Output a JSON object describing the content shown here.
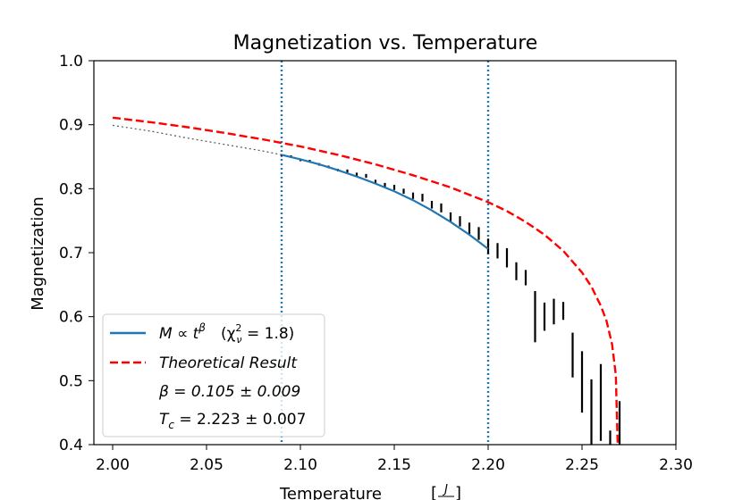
{
  "chart_data": {
    "type": "line",
    "title": "Magnetization vs. Temperature",
    "xlabel": "Temperature",
    "xlabel_unit_num": "J",
    "xlabel_unit_den": "",
    "ylabel": "Magnetization",
    "xlim": [
      1.99,
      2.3
    ],
    "ylim": [
      0.4,
      1.0
    ],
    "x_ticks": [
      2.0,
      2.05,
      2.1,
      2.15,
      2.2,
      2.25,
      2.3
    ],
    "x_tick_labels": [
      "2.00",
      "2.05",
      "2.10",
      "2.15",
      "2.20",
      "2.25",
      "2.30"
    ],
    "y_ticks": [
      0.4,
      0.5,
      0.6,
      0.7,
      0.8,
      0.9,
      1.0
    ],
    "y_tick_labels": [
      "0.4",
      "0.5",
      "0.6",
      "0.7",
      "0.8",
      "0.9",
      "1.0"
    ],
    "grid": false,
    "legend_position": "lower-left",
    "vlines": [
      {
        "x": 2.09,
        "color": "#1f77b4",
        "style": "dotted"
      },
      {
        "x": 2.2,
        "color": "#1f77b4",
        "style": "dotted"
      }
    ],
    "series": [
      {
        "name": "Theoretical Result",
        "style": "dashed",
        "color": "#ff0000",
        "x": [
          2.0,
          2.02,
          2.04,
          2.06,
          2.08,
          2.1,
          2.12,
          2.14,
          2.16,
          2.18,
          2.2,
          2.21,
          2.22,
          2.23,
          2.24,
          2.25,
          2.255,
          2.26,
          2.263,
          2.266,
          2.268,
          2.269
        ],
        "y": [
          0.911,
          0.904,
          0.896,
          0.887,
          0.877,
          0.866,
          0.853,
          0.838,
          0.821,
          0.802,
          0.779,
          0.765,
          0.748,
          0.728,
          0.703,
          0.669,
          0.647,
          0.617,
          0.594,
          0.557,
          0.509,
          0.4
        ]
      },
      {
        "name": "M ∝ t^β  (χ²ν = 1.8)",
        "style": "solid",
        "color": "#1f77b4",
        "x": [
          2.09,
          2.1,
          2.11,
          2.12,
          2.13,
          2.14,
          2.15,
          2.16,
          2.17,
          2.18,
          2.19,
          2.2
        ],
        "y": [
          0.853,
          0.846,
          0.838,
          0.829,
          0.819,
          0.808,
          0.796,
          0.782,
          0.766,
          0.748,
          0.728,
          0.706
        ]
      },
      {
        "name": "",
        "style": "dotted",
        "color": "#555555",
        "x": [
          2.0,
          2.02,
          2.04,
          2.06,
          2.08,
          2.09
        ],
        "y": [
          0.899,
          0.89,
          0.879,
          0.869,
          0.859,
          0.853
        ]
      }
    ],
    "data_points": [
      {
        "x": 2.09,
        "y": 0.852,
        "yerr": 0.002
      },
      {
        "x": 2.095,
        "y": 0.85,
        "yerr": 0.002
      },
      {
        "x": 2.1,
        "y": 0.845,
        "yerr": 0.002
      },
      {
        "x": 2.105,
        "y": 0.843,
        "yerr": 0.002
      },
      {
        "x": 2.11,
        "y": 0.838,
        "yerr": 0.002
      },
      {
        "x": 2.115,
        "y": 0.834,
        "yerr": 0.002
      },
      {
        "x": 2.12,
        "y": 0.829,
        "yerr": 0.002
      },
      {
        "x": 2.125,
        "y": 0.827,
        "yerr": 0.003
      },
      {
        "x": 2.13,
        "y": 0.822,
        "yerr": 0.003
      },
      {
        "x": 2.135,
        "y": 0.82,
        "yerr": 0.003
      },
      {
        "x": 2.14,
        "y": 0.811,
        "yerr": 0.003
      },
      {
        "x": 2.145,
        "y": 0.805,
        "yerr": 0.004
      },
      {
        "x": 2.15,
        "y": 0.802,
        "yerr": 0.004
      },
      {
        "x": 2.155,
        "y": 0.796,
        "yerr": 0.004
      },
      {
        "x": 2.16,
        "y": 0.789,
        "yerr": 0.005
      },
      {
        "x": 2.165,
        "y": 0.786,
        "yerr": 0.006
      },
      {
        "x": 2.17,
        "y": 0.775,
        "yerr": 0.006
      },
      {
        "x": 2.175,
        "y": 0.77,
        "yerr": 0.007
      },
      {
        "x": 2.18,
        "y": 0.756,
        "yerr": 0.007
      },
      {
        "x": 2.185,
        "y": 0.749,
        "yerr": 0.008
      },
      {
        "x": 2.19,
        "y": 0.738,
        "yerr": 0.009
      },
      {
        "x": 2.195,
        "y": 0.73,
        "yerr": 0.01
      },
      {
        "x": 2.2,
        "y": 0.71,
        "yerr": 0.012
      },
      {
        "x": 2.205,
        "y": 0.703,
        "yerr": 0.012
      },
      {
        "x": 2.21,
        "y": 0.692,
        "yerr": 0.015
      },
      {
        "x": 2.215,
        "y": 0.671,
        "yerr": 0.014
      },
      {
        "x": 2.22,
        "y": 0.661,
        "yerr": 0.012
      },
      {
        "x": 2.225,
        "y": 0.6,
        "yerr": 0.04
      },
      {
        "x": 2.23,
        "y": 0.6,
        "yerr": 0.022
      },
      {
        "x": 2.235,
        "y": 0.608,
        "yerr": 0.02
      },
      {
        "x": 2.24,
        "y": 0.609,
        "yerr": 0.014
      },
      {
        "x": 2.245,
        "y": 0.54,
        "yerr": 0.035
      },
      {
        "x": 2.25,
        "y": 0.498,
        "yerr": 0.048
      },
      {
        "x": 2.255,
        "y": 0.45,
        "yerr": 0.052
      },
      {
        "x": 2.26,
        "y": 0.466,
        "yerr": 0.06
      },
      {
        "x": 2.265,
        "y": 0.41,
        "yerr": 0.012
      },
      {
        "x": 2.27,
        "y": 0.428,
        "yerr": 0.04
      }
    ],
    "legend": [
      {
        "label_main": "M ∝ t",
        "label_sup": "β",
        "label_extra": "(χ",
        "label_extra_sup": "2",
        "label_extra_sub": "ν",
        "label_extra_tail": " = 1.8)",
        "marker": "solid",
        "color": "#1f77b4"
      },
      {
        "label_main": "Theoretical Result",
        "marker": "dashed",
        "color": "#ff0000"
      },
      {
        "label_main": "β = 0.105 ± 0.009",
        "marker": "none"
      },
      {
        "label_main": "T",
        "label_sub": "c",
        "label_tail": " = 2.223 ± 0.007",
        "marker": "none"
      }
    ]
  }
}
